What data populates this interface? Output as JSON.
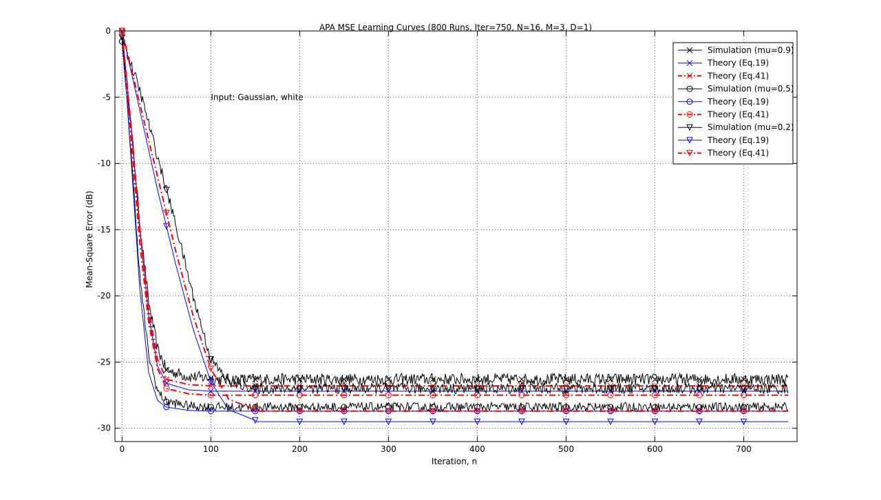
{
  "chart_data": {
    "type": "line",
    "title": "APA MSE Learning Curves (800 Runs, Iter=750, N=16, M=3, D=1)",
    "xlabel": "Iteration, n",
    "ylabel": "Mean-Square Error (dB)",
    "xlim": [
      -8,
      760
    ],
    "ylim": [
      -31,
      0
    ],
    "xticks": [
      0,
      100,
      200,
      300,
      400,
      500,
      600,
      700
    ],
    "yticks": [
      0,
      -5,
      -10,
      -15,
      -20,
      -25,
      -30
    ],
    "grid": true,
    "legend_position": "top-right",
    "annotation": {
      "text": "Input: Gaussian, white",
      "x": 100,
      "y": -5
    },
    "colors": {
      "simulation": "#000000",
      "theory19": "#0000ff",
      "theory41": "#ff0000"
    },
    "series": [
      {
        "name": "Simulation (mu=0.9)",
        "kind": "simulation",
        "marker": "x",
        "mu": 0.9,
        "floor": -26.3,
        "noise": 0.45,
        "x": [
          0,
          10,
          20,
          30,
          40,
          50,
          75,
          100
        ],
        "y": [
          -0.5,
          -7,
          -14.5,
          -20.5,
          -24,
          -25.6,
          -26.1,
          -26.2
        ]
      },
      {
        "name": "Theory (Eq.19)",
        "kind": "theory19",
        "marker": "x",
        "mu": 0.9,
        "floor": -27.2,
        "x": [
          0,
          10,
          20,
          30,
          40,
          50,
          75,
          100
        ],
        "y": [
          0,
          -7,
          -15,
          -21.5,
          -25.3,
          -26.6,
          -27.1,
          -27.2
        ]
      },
      {
        "name": "Theory (Eq.41)",
        "kind": "theory41",
        "marker": "x",
        "mu": 0.9,
        "floor": -26.8,
        "x": [
          0,
          10,
          20,
          30,
          40,
          50,
          75,
          100
        ],
        "y": [
          0,
          -7,
          -14.8,
          -21,
          -24.8,
          -26.3,
          -26.7,
          -26.8
        ]
      },
      {
        "name": "Simulation (mu=0.5)",
        "kind": "simulation",
        "marker": "o",
        "mu": 0.5,
        "floor": -28.4,
        "noise": 0.35,
        "x": [
          0,
          10,
          20,
          30,
          40,
          50,
          75,
          100
        ],
        "y": [
          -0.8,
          -9,
          -18.5,
          -24.5,
          -27.2,
          -28,
          -28.3,
          -28.4
        ]
      },
      {
        "name": "Theory (Eq.19)",
        "kind": "theory19",
        "marker": "o",
        "mu": 0.5,
        "floor": -28.7,
        "x": [
          0,
          10,
          20,
          30,
          40,
          50,
          75,
          100
        ],
        "y": [
          0,
          -9.5,
          -19.5,
          -25.8,
          -27.9,
          -28.4,
          -28.65,
          -28.7
        ]
      },
      {
        "name": "Theory (Eq.41)",
        "kind": "theory41",
        "marker": "o",
        "mu": 0.5,
        "floor": -27.5,
        "x": [
          0,
          10,
          20,
          30,
          40,
          50,
          75,
          100
        ],
        "y": [
          0,
          -8,
          -16,
          -22,
          -25.5,
          -27,
          -27.4,
          -27.5
        ]
      },
      {
        "name": "Simulation (mu=0.2)",
        "kind": "simulation",
        "marker": "v",
        "mu": 0.2,
        "floor": -27.0,
        "noise": 0.4,
        "x": [
          0,
          20,
          40,
          60,
          80,
          100,
          120,
          150
        ],
        "y": [
          -0.5,
          -4.5,
          -9.5,
          -14.5,
          -20,
          -24.8,
          -26.5,
          -27
        ]
      },
      {
        "name": "Theory (Eq.19)",
        "kind": "theory19",
        "marker": "v",
        "mu": 0.2,
        "floor": -29.5,
        "x": [
          0,
          20,
          40,
          60,
          80,
          100,
          120,
          150
        ],
        "y": [
          0,
          -6,
          -12,
          -17.5,
          -22.5,
          -26.5,
          -28.6,
          -29.4
        ]
      },
      {
        "name": "Theory (Eq.41)",
        "kind": "theory41",
        "marker": "v",
        "mu": 0.2,
        "floor": -28.7,
        "x": [
          0,
          20,
          40,
          60,
          80,
          100,
          120,
          150
        ],
        "y": [
          0,
          -5.5,
          -11,
          -16.5,
          -21.5,
          -25.5,
          -27.8,
          -28.6
        ]
      }
    ]
  }
}
